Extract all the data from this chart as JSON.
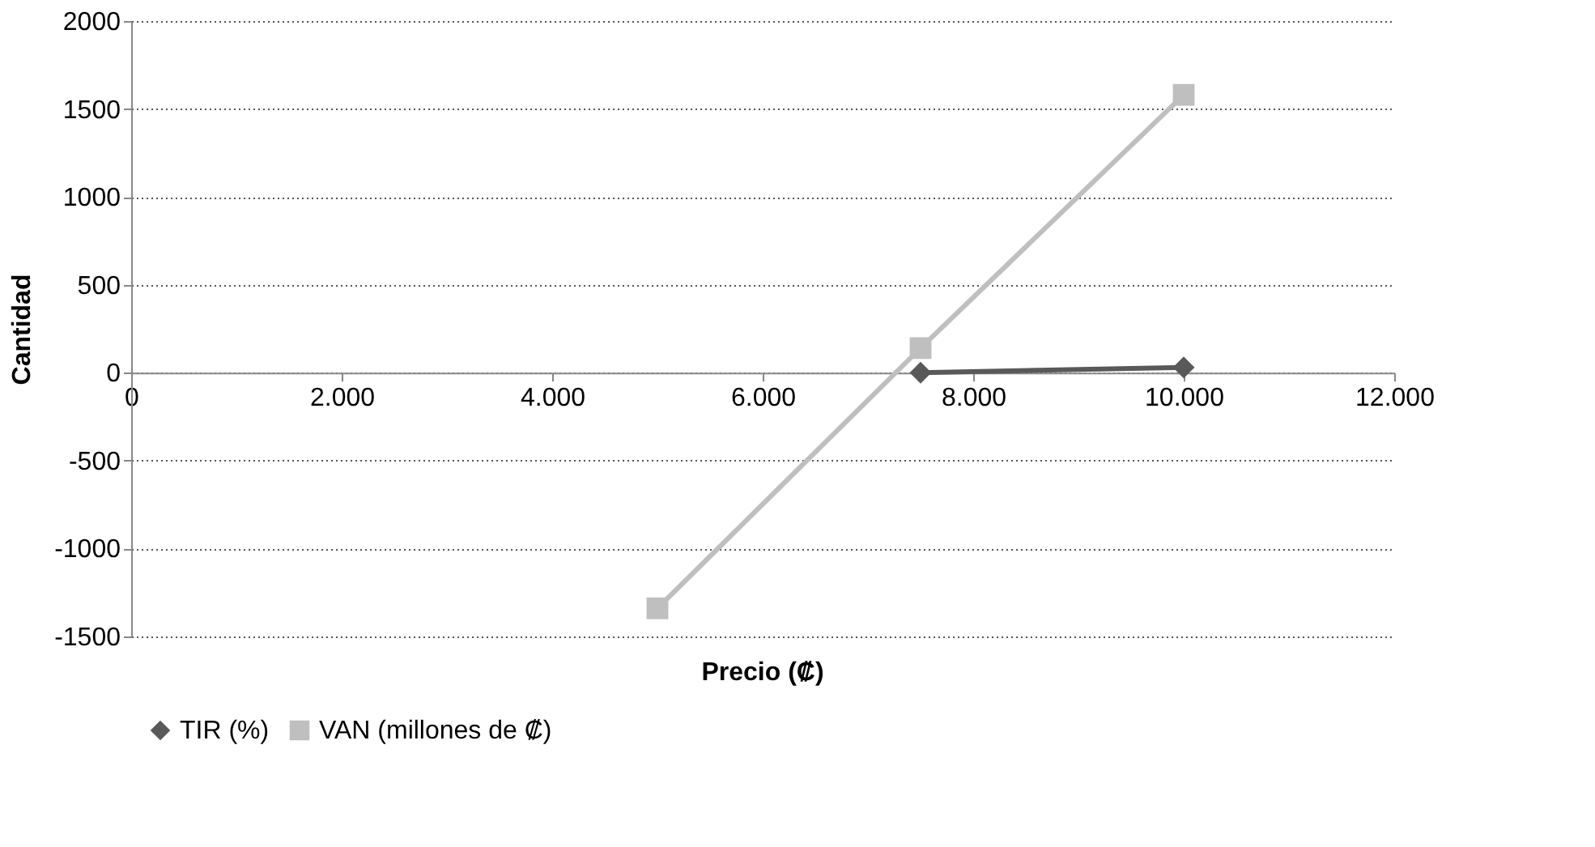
{
  "chart_data": {
    "type": "line",
    "xlabel": "Precio (₡)",
    "ylabel": "Cantidad",
    "xlim": [
      0,
      12000
    ],
    "xticks": [
      0,
      {
        "value": 2000,
        "label": "2.000"
      },
      {
        "value": 4000,
        "label": "4.000"
      },
      {
        "value": 6000,
        "label": "6.000"
      },
      {
        "value": 8000,
        "label": "8.000"
      },
      {
        "value": 10000,
        "label": "10.000"
      },
      {
        "value": 12000,
        "label": "12.000"
      }
    ],
    "ylim": [
      -1500,
      2000
    ],
    "yticks": [
      -1500,
      -1000,
      -500,
      0,
      500,
      1000,
      1500,
      2000
    ],
    "grid": "y",
    "legend": "bottom",
    "line_style": "solid",
    "series": [
      {
        "name": "TIR (%)",
        "color": "#595959",
        "marker": "diamond",
        "x": [
          7500,
          10000
        ],
        "values": [
          0,
          30
        ]
      },
      {
        "name": "VAN (millones de ₡)",
        "color": "#bfbfbf",
        "marker": "square",
        "x": [
          5000,
          7500,
          10000
        ],
        "values": [
          -1340,
          140,
          1580
        ]
      }
    ]
  }
}
